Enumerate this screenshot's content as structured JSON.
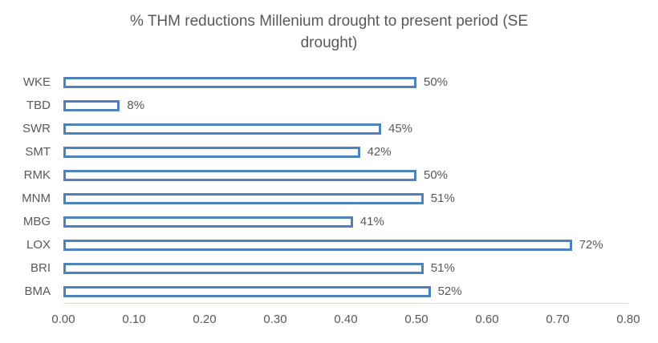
{
  "chart_data": {
    "type": "bar",
    "orientation": "horizontal",
    "title": "% THM reductions Millenium drought to present period (SE drought)",
    "title_lines": [
      "% THM reductions Millenium drought to present period (SE",
      "drought)"
    ],
    "categories": [
      "WKE",
      "TBD",
      "SWR",
      "SMT",
      "RMK",
      "MNM",
      "MBG",
      "LOX",
      "BRI",
      "BMA"
    ],
    "values": [
      0.5,
      0.08,
      0.45,
      0.42,
      0.5,
      0.51,
      0.41,
      0.72,
      0.51,
      0.52
    ],
    "data_labels": [
      "50%",
      "8%",
      "45%",
      "42%",
      "50%",
      "51%",
      "41%",
      "72%",
      "51%",
      "52%"
    ],
    "xlabel": "",
    "ylabel": "",
    "xlim": [
      0,
      0.8
    ],
    "x_ticks": [
      "0.00",
      "0.10",
      "0.20",
      "0.30",
      "0.40",
      "0.50",
      "0.60",
      "0.70",
      "0.80"
    ],
    "grid": false,
    "legend": false,
    "colors": {
      "bar_border": "#4f81bd",
      "bar_fill": "#fbfdfe",
      "axis_line": "#d9d9d9",
      "text": "#595959"
    }
  }
}
